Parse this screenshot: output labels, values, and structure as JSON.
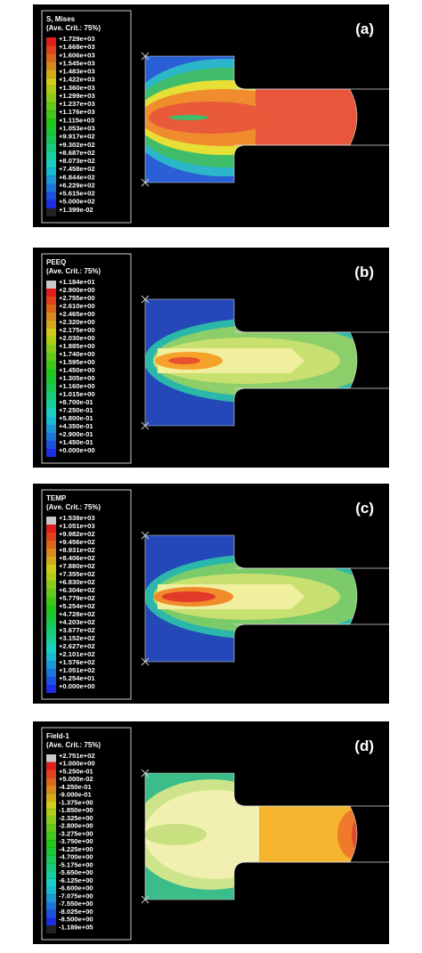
{
  "panels": [
    {
      "label": "(a)",
      "legend": {
        "title": "S, Mises",
        "subtitle": "(Ave. Crit.: 75%)",
        "values": [
          "+1.729e+03",
          "+1.668e+03",
          "+1.606e+03",
          "+1.545e+03",
          "+1.483e+03",
          "+1.422e+03",
          "+1.360e+03",
          "+1.299e+03",
          "+1.237e+03",
          "+1.176e+03",
          "+1.115e+03",
          "+1.053e+03",
          "+9.917e+02",
          "+9.302e+02",
          "+8.687e+02",
          "+8.073e+02",
          "+7.458e+02",
          "+6.844e+02",
          "+6.229e+02",
          "+5.615e+02",
          "+5.000e+02",
          "+1.399e-02"
        ]
      }
    },
    {
      "label": "(b)",
      "legend": {
        "title": "PEEQ",
        "subtitle": "(Ave. Crit.: 75%)",
        "values": [
          "+1.184e+01",
          "+2.900e+00",
          "+2.755e+00",
          "+2.610e+00",
          "+2.465e+00",
          "+2.320e+00",
          "+2.175e+00",
          "+2.030e+00",
          "+1.885e+00",
          "+1.740e+00",
          "+1.595e+00",
          "+1.450e+00",
          "+1.305e+00",
          "+1.160e+00",
          "+1.015e+00",
          "+8.700e-01",
          "+7.250e-01",
          "+5.800e-01",
          "+4.350e-01",
          "+2.900e-01",
          "+1.450e-01",
          "+0.000e+00"
        ]
      }
    },
    {
      "label": "(c)",
      "legend": {
        "title": "TEMP",
        "subtitle": "(Ave. Crit.: 75%)",
        "values": [
          "+1.538e+03",
          "+1.051e+03",
          "+9.982e+02",
          "+9.456e+02",
          "+8.931e+02",
          "+8.406e+02",
          "+7.880e+02",
          "+7.355e+02",
          "+6.830e+02",
          "+6.304e+02",
          "+5.779e+02",
          "+5.254e+02",
          "+4.728e+02",
          "+4.203e+02",
          "+3.677e+02",
          "+3.152e+02",
          "+2.627e+02",
          "+2.101e+02",
          "+1.576e+02",
          "+1.051e+02",
          "+5.254e+01",
          "+0.000e+00"
        ]
      }
    },
    {
      "label": "(d)",
      "legend": {
        "title": "Field-1",
        "subtitle": "(Ave. Crit.: 75%)",
        "values": [
          "+2.751e+02",
          "+1.000e+00",
          "+5.250e-01",
          "+5.000e-02",
          "-4.250e-01",
          "-9.000e-01",
          "-1.375e+00",
          "-1.850e+00",
          "-2.325e+00",
          "-2.800e+00",
          "-3.275e+00",
          "-3.750e+00",
          "-4.225e+00",
          "-4.700e+00",
          "-5.175e+00",
          "-5.650e+00",
          "-6.125e+00",
          "-6.600e+00",
          "-7.075e+00",
          "-7.550e+00",
          "-8.025e+00",
          "-8.500e+00",
          "-1.189e+05"
        ]
      }
    }
  ]
}
